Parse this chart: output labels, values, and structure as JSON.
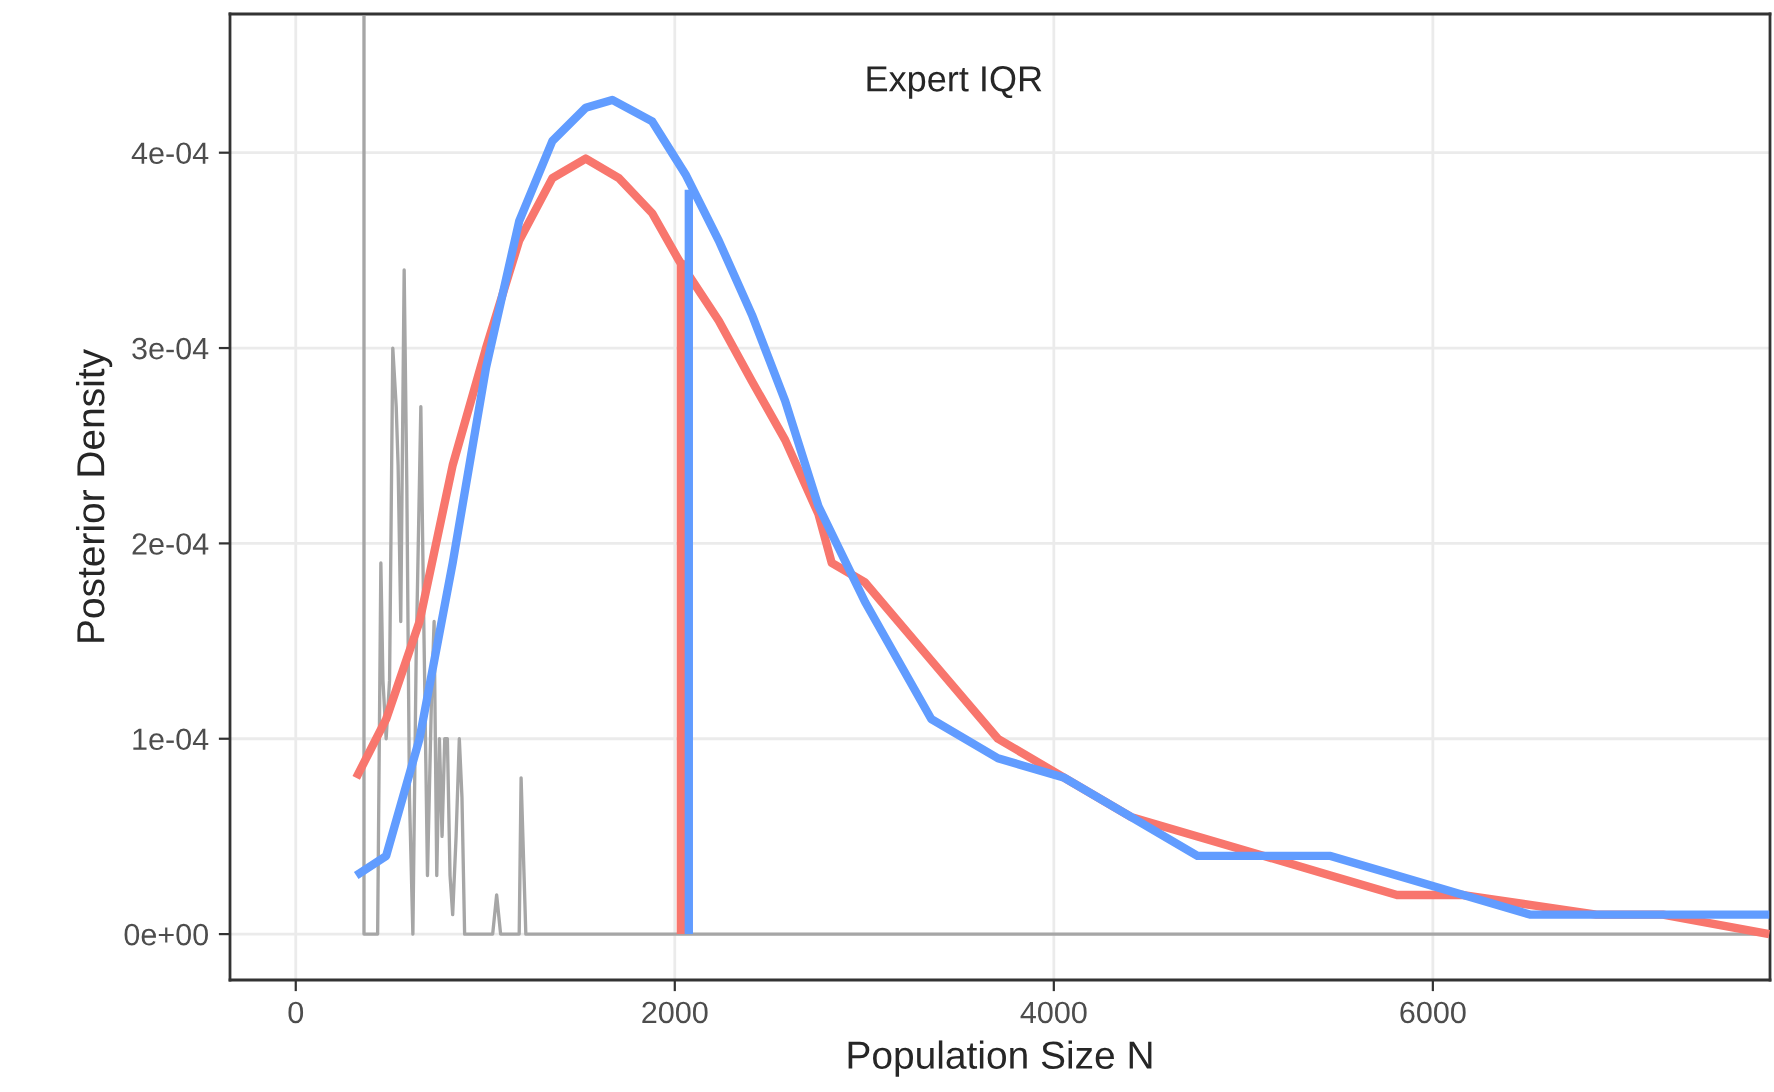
{
  "chart_data": {
    "type": "line",
    "xlabel": "Population Size N",
    "ylabel": "Posterior Density",
    "annotations": [
      "Expert IQR"
    ],
    "xlim": [
      -347,
      7779
    ],
    "xticks": [
      0,
      2000,
      4000,
      6000
    ],
    "ylim": [
      -2.35e-05,
      0.000471
    ],
    "yticks": [
      {
        "value": 0,
        "label": "0e+00"
      },
      {
        "value": 0.0001,
        "label": "1e-04"
      },
      {
        "value": 0.0002,
        "label": "2e-04"
      },
      {
        "value": 0.0003,
        "label": "3e-04"
      },
      {
        "value": 0.0004,
        "label": "4e-04"
      }
    ],
    "grid": true,
    "legend": false,
    "line_style": "solid",
    "marker": "none",
    "series": [
      {
        "color": "#a6a6a6",
        "x": [
          360,
          360,
          379,
          407,
          432,
          449,
          460,
          477,
          495,
          512,
          530,
          540,
          554,
          572,
          586,
          600,
          618,
          635,
          660,
          674,
          695,
          716,
          730,
          744,
          758,
          772,
          786,
          800,
          814,
          828,
          846,
          863,
          877,
          891,
          1039,
          1060,
          1081,
          1179,
          1189,
          1214,
          7770
        ],
        "values": [
          0.00047,
          0,
          0,
          0,
          0,
          0.00019,
          0.00013,
          0.0001,
          0.00013,
          0.0003,
          0.00027,
          0.00024,
          0.00016,
          0.00034,
          0.00023,
          7e-05,
          0,
          0.00014,
          0.00027,
          0.00017,
          3e-05,
          0.00012,
          0.00016,
          3e-05,
          0.0001,
          5e-05,
          0.0001,
          0.0001,
          3e-05,
          1e-05,
          5e-05,
          0.0001,
          7e-05,
          0,
          0,
          2e-05,
          0,
          0,
          8e-05,
          0,
          0
        ]
      },
      {
        "color": "#f8766d",
        "x": [
          319,
          477,
          653,
          828,
          1004,
          1179,
          1354,
          1530,
          1705,
          1881,
          2021,
          2232,
          2407,
          2582,
          2758,
          2828,
          3004,
          3354,
          3705,
          4056,
          4407,
          4758,
          5109,
          5460,
          5811,
          6161,
          6863,
          7214,
          7775
        ],
        "values": [
          8e-05,
          0.00011,
          0.00016,
          0.00024,
          0.0003,
          0.000355,
          0.000387,
          0.000397,
          0.000387,
          0.000369,
          0.000345,
          0.000314,
          0.000283,
          0.000253,
          0.000215,
          0.00019,
          0.00018,
          0.00014,
          0.0001,
          8e-05,
          6e-05,
          5e-05,
          4e-05,
          3e-05,
          2e-05,
          2e-05,
          1e-05,
          1e-05,
          0
        ]
      },
      {
        "color": "#619cff",
        "x": [
          319,
          477,
          653,
          828,
          1004,
          1179,
          1354,
          1530,
          1670,
          1881,
          2056,
          2232,
          2407,
          2582,
          2758,
          2828,
          3004,
          3354,
          3705,
          4056,
          4407,
          4758,
          5109,
          5460,
          5811,
          6161,
          6512,
          6863,
          7775
        ],
        "values": [
          3e-05,
          4e-05,
          0.0001,
          0.00019,
          0.00029,
          0.000365,
          0.000406,
          0.000423,
          0.000427,
          0.000416,
          0.000389,
          0.000355,
          0.000317,
          0.000273,
          0.000219,
          0.000205,
          0.00017,
          0.00011,
          9e-05,
          8e-05,
          6e-05,
          4e-05,
          4e-05,
          4e-05,
          3e-05,
          2e-05,
          1e-05,
          1e-05,
          1e-05
        ]
      },
      {
        "color": "#f8766d",
        "x": [
          2032,
          2032
        ],
        "values": [
          0,
          0.000345
        ]
      },
      {
        "color": "#619cff",
        "x": [
          2074,
          2074
        ],
        "values": [
          0,
          0.000381
        ]
      }
    ]
  }
}
